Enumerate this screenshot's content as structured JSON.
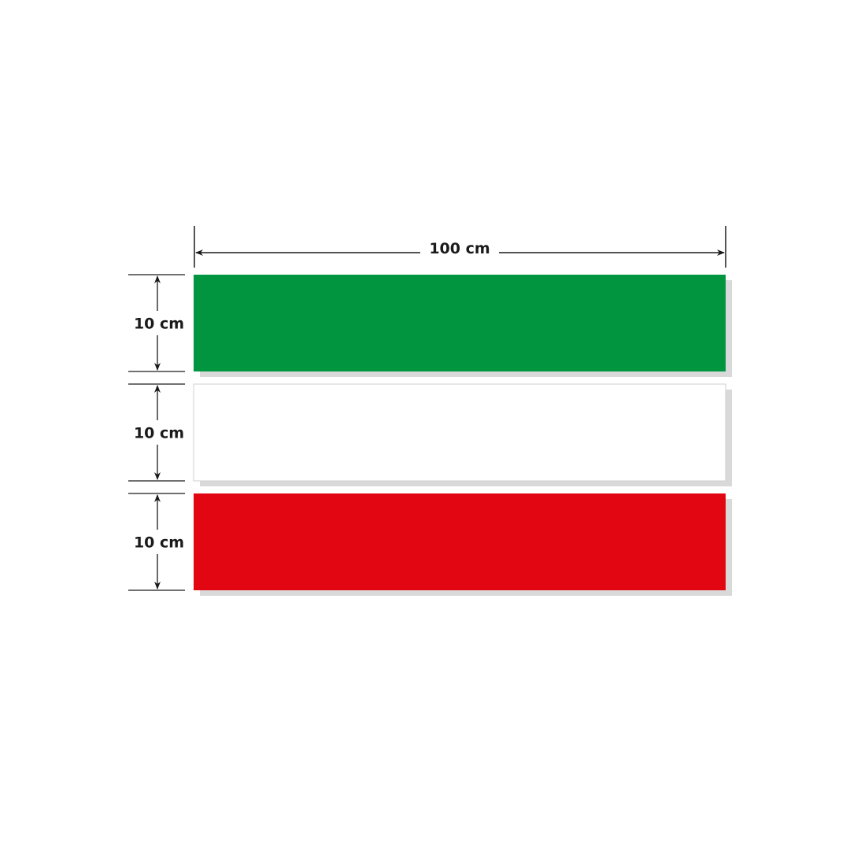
{
  "width_label": "100 cm",
  "stripes": [
    {
      "color": "#02953f",
      "height_label": "10 cm"
    },
    {
      "color": "#ffffff",
      "height_label": "10 cm"
    },
    {
      "color": "#e20613",
      "height_label": "10 cm"
    }
  ],
  "shadow_color": "#d9d9d9",
  "line_color": "#1a1a1a"
}
